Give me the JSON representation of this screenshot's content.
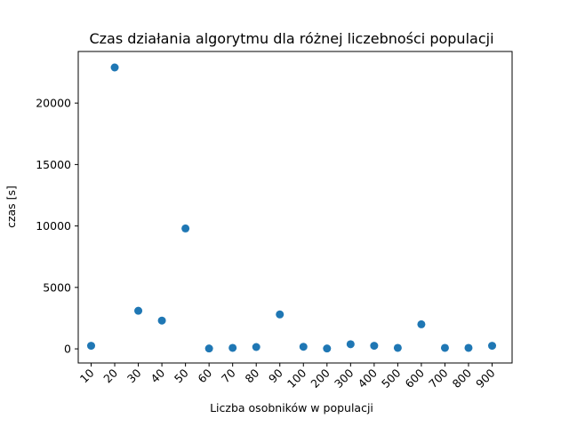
{
  "chart_data": {
    "type": "scatter",
    "title": "Czas działania algorytmu dla różnej liczebności populacji",
    "xlabel": "Liczba osobników w populacji",
    "ylabel": "czas [s]",
    "categories": [
      "10",
      "20",
      "30",
      "40",
      "50",
      "60",
      "70",
      "80",
      "90",
      "100",
      "200",
      "300",
      "400",
      "500",
      "600",
      "700",
      "800",
      "900"
    ],
    "values": [
      250,
      22900,
      3100,
      2300,
      9800,
      30,
      80,
      150,
      2800,
      170,
      30,
      380,
      250,
      80,
      2000,
      80,
      80,
      250
    ],
    "yticks": [
      0,
      5000,
      10000,
      15000,
      20000
    ],
    "ylim": [
      -1150,
      24200
    ],
    "grid": false,
    "marker_color": "#1f77b4"
  }
}
